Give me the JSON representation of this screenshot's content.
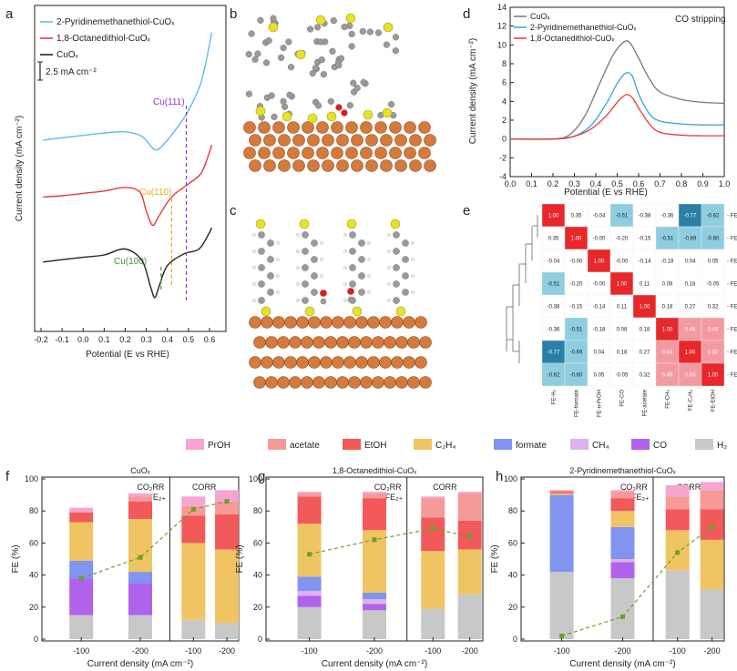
{
  "panels": {
    "a": "a",
    "b": "b",
    "c": "c",
    "d": "d",
    "e": "e",
    "f": "f",
    "g": "g",
    "h": "h"
  },
  "chart_data": [
    {
      "id": "a",
      "type": "line",
      "title": "",
      "xlabel": "Potential (E vs RHE)",
      "ylabel": "Current density (mA cm⁻²)",
      "xlim": [
        -0.2,
        0.6
      ],
      "xticks": [
        "-0.2",
        "-0.1",
        "0.0",
        "0.1",
        "0.2",
        "0.3",
        "0.4",
        "0.5",
        "0.6"
      ],
      "scale_bar": "2.5 mA cm⁻²",
      "series": [
        {
          "name": "2-Pyridinemethanethiol-CuOₓ",
          "color": "#5bbcea",
          "x": [
            -0.19,
            -0.1,
            0.0,
            0.1,
            0.2,
            0.28,
            0.34,
            0.38,
            0.44,
            0.5,
            0.56,
            0.6,
            0.61
          ],
          "y": [
            8.7,
            8.9,
            9.1,
            9.3,
            9.4,
            9.0,
            7.9,
            8.3,
            9.6,
            11.2,
            13.6,
            16.8,
            17.8
          ]
        },
        {
          "name": "1,8-Octanedithiol-CuOₓ",
          "color": "#e8383d",
          "x": [
            -0.19,
            -0.1,
            0.0,
            0.1,
            0.2,
            0.27,
            0.3,
            0.33,
            0.36,
            0.42,
            0.5,
            0.56,
            0.6,
            0.61
          ],
          "y": [
            3.9,
            4.0,
            4.2,
            4.4,
            4.7,
            4.3,
            2.7,
            1.5,
            2.3,
            3.9,
            5.0,
            5.9,
            7.7,
            8.3
          ]
        },
        {
          "name": "CuOₓ",
          "color": "#222222",
          "x": [
            -0.19,
            -0.1,
            0.0,
            0.1,
            0.2,
            0.28,
            0.32,
            0.34,
            0.36,
            0.4,
            0.48,
            0.55,
            0.6,
            0.61
          ],
          "y": [
            -1.6,
            -1.4,
            -1.2,
            -1.0,
            -0.5,
            -1.5,
            -3.7,
            -4.6,
            -3.7,
            -1.9,
            -0.9,
            -0.5,
            0.9,
            1.3
          ]
        }
      ],
      "annotations": [
        {
          "text": "Cu(111)",
          "color": "#9b2fc9"
        },
        {
          "text": "Cu(110)",
          "color": "#e8a81c"
        },
        {
          "text": "Cu(100)",
          "color": "#3a9a2a"
        }
      ]
    },
    {
      "id": "d",
      "type": "line",
      "title": "CO stripping",
      "xlabel": "Potential (E vs RHE)",
      "ylabel": "Current density (mA cm⁻²)",
      "xlim": [
        0.0,
        1.0
      ],
      "ylim": [
        -4,
        14
      ],
      "xticks": [
        "0.0",
        "0.1",
        "0.2",
        "0.3",
        "0.4",
        "0.5",
        "0.6",
        "0.7",
        "0.8",
        "0.9",
        "1.0"
      ],
      "yticks": [
        "-4",
        "-2",
        "0",
        "2",
        "4",
        "6",
        "8",
        "10",
        "12",
        "14"
      ],
      "series": [
        {
          "name": "CuOₓ",
          "color": "#777777",
          "x": [
            0.0,
            0.2,
            0.28,
            0.35,
            0.42,
            0.48,
            0.53,
            0.56,
            0.6,
            0.65,
            0.7,
            0.8,
            0.9,
            1.0
          ],
          "y": [
            0.0,
            0.0,
            0.5,
            2.5,
            6.0,
            8.9,
            10.3,
            10.2,
            8.6,
            6.4,
            5.0,
            4.2,
            3.9,
            3.8
          ]
        },
        {
          "name": "2-Pyridinemethanethiol-CuOₓ",
          "color": "#2ea3e0",
          "x": [
            0.0,
            0.2,
            0.3,
            0.38,
            0.45,
            0.5,
            0.54,
            0.57,
            0.6,
            0.65,
            0.7,
            0.8,
            0.9,
            1.0
          ],
          "y": [
            0.0,
            0.0,
            0.3,
            1.5,
            3.8,
            5.9,
            7.0,
            6.7,
            4.8,
            2.7,
            1.9,
            1.6,
            1.5,
            1.5
          ]
        },
        {
          "name": "1,8-Octanedithiol-CuOₓ",
          "color": "#e8383d",
          "x": [
            0.0,
            0.2,
            0.3,
            0.38,
            0.45,
            0.5,
            0.54,
            0.57,
            0.6,
            0.65,
            0.7,
            0.8,
            0.9,
            1.0
          ],
          "y": [
            0.0,
            0.0,
            0.3,
            1.1,
            2.5,
            3.9,
            4.7,
            4.4,
            3.3,
            1.6,
            0.7,
            0.4,
            0.35,
            0.35
          ]
        }
      ]
    },
    {
      "id": "e",
      "type": "heatmap",
      "labels": [
        "FE-H₂",
        "FE-formate",
        "FE-n-PrOH",
        "FE-CO",
        "FE-acetate",
        "FE-CH₄",
        "FE-C₂H₄",
        "FE-EtOH"
      ],
      "values": [
        [
          1.0,
          0.35,
          -0.04,
          -0.51,
          -0.38,
          -0.36,
          -0.77,
          -0.62
        ],
        [
          0.35,
          1.0,
          -0.0,
          -0.2,
          -0.15,
          -0.51,
          -0.69,
          -0.6
        ],
        [
          -0.04,
          -0.0,
          1.0,
          -0.0,
          -0.14,
          -0.18,
          0.04,
          0.05
        ],
        [
          -0.51,
          -0.2,
          -0.0,
          1.0,
          0.11,
          0.08,
          0.18,
          -0.05
        ],
        [
          -0.38,
          -0.15,
          -0.14,
          0.11,
          1.0,
          0.18,
          0.27,
          0.32
        ],
        [
          -0.36,
          -0.51,
          -0.18,
          0.08,
          0.18,
          1.0,
          0.44,
          0.49
        ],
        [
          -0.77,
          -0.69,
          0.04,
          0.18,
          0.27,
          0.44,
          1.0,
          0.8
        ],
        [
          -0.62,
          -0.6,
          0.05,
          -0.05,
          0.32,
          0.49,
          0.8,
          1.0
        ]
      ],
      "display": [
        [
          "1.00",
          "0.35",
          "-0.04",
          "-0.51",
          "-0.38",
          "-0.36",
          "-0.77",
          "-0.62"
        ],
        [
          "0.35",
          "1.00",
          "-0.00",
          "-0.20",
          "-0.15",
          "-0.51",
          "-0.69",
          "-0.60"
        ],
        [
          "-0.04",
          "-0.00",
          "1.00",
          "-0.00",
          "-0.14",
          "-0.18",
          "0.04",
          "0.05"
        ],
        [
          "-0.51",
          "-0.20",
          "-0.00",
          "1.00",
          "0.11",
          "0.08",
          "0.18",
          "-0.05"
        ],
        [
          "-0.38",
          "-0.15",
          "-0.14",
          "0.11",
          "1.00",
          "0.18",
          "0.27",
          "0.32"
        ],
        [
          "-0.36",
          "-0.51",
          "-0.18",
          "0.08",
          "0.18",
          "1.00",
          "0.44",
          "0.49"
        ],
        [
          "-0.77",
          "-0.69",
          "0.04",
          "0.18",
          "0.27",
          "0.44",
          "1.00",
          "0.80"
        ],
        [
          "-0.62",
          "-0.60",
          "0.05",
          "-0.05",
          "0.32",
          "0.49",
          "0.80",
          "1.00"
        ]
      ]
    },
    {
      "id": "fgh",
      "type": "bar",
      "stacked": true,
      "legend": [
        {
          "name": "PrOH",
          "color": "#f5a5cf"
        },
        {
          "name": "acetate",
          "color": "#f59a96"
        },
        {
          "name": "EtOH",
          "color": "#f2595b"
        },
        {
          "name": "C₂H₄",
          "color": "#f0c463"
        },
        {
          "name": "formate",
          "color": "#8094f0"
        },
        {
          "name": "CH₄",
          "color": "#deb2f0"
        },
        {
          "name": "CO",
          "color": "#b063ea"
        },
        {
          "name": "H₂",
          "color": "#c8c8c8"
        }
      ],
      "stack_order": [
        "H₂",
        "CO",
        "CH₄",
        "formate",
        "C₂H₄",
        "EtOH",
        "acetate",
        "PrOH"
      ],
      "xlabel": "Current density (mA cm⁻²)",
      "ylabel": "FE (%)",
      "ylim": [
        0,
        100
      ],
      "yticks": [
        "0",
        "20",
        "40",
        "60",
        "80",
        "100"
      ],
      "categories": [
        "-100",
        "-200",
        "-100",
        "-200"
      ],
      "group_labels": [
        "CO₂RR",
        "CORR"
      ],
      "fec2_label": "FE₂₊",
      "panels": [
        {
          "id": "f",
          "title": "CuOₓ",
          "bars": [
            [
              15,
              23,
              0,
              11,
              24,
              6,
              0.5,
              2.5
            ],
            [
              15,
              20,
              0,
              7,
              33,
              11,
              3,
              2
            ],
            [
              12,
              0,
              0,
              0,
              48,
              17,
              6,
              6
            ],
            [
              10,
              0,
              0,
              0,
              46,
              22,
              8,
              7
            ]
          ],
          "fec2": [
            38,
            51,
            81,
            86
          ]
        },
        {
          "id": "g",
          "title": "1,8-Octanedithiol-CuOₓ",
          "bars": [
            [
              20,
              7,
              3,
              9,
              33,
              17,
              2,
              1
            ],
            [
              18,
              4,
              3,
              4,
              39,
              20,
              3,
              1
            ],
            [
              19,
              0,
              0,
              0,
              36,
              21,
              12,
              1
            ],
            [
              28,
              0,
              0,
              0,
              28,
              18,
              17,
              1
            ]
          ],
          "fec2": [
            53,
            62,
            69,
            64
          ]
        },
        {
          "id": "h",
          "title": "2-Pyridinemethanethiol-CuOₓ",
          "bars": [
            [
              42,
              0,
              0,
              48,
              1,
              1,
              1,
              0
            ],
            [
              38,
              10,
              2,
              20,
              10,
              8,
              4,
              1
            ],
            [
              43,
              0,
              0,
              0,
              25,
              13,
              8,
              7
            ],
            [
              31,
              0,
              0,
              0,
              31,
              19,
              12,
              5
            ]
          ],
          "fec2": [
            2,
            14,
            54,
            70
          ]
        }
      ]
    }
  ]
}
